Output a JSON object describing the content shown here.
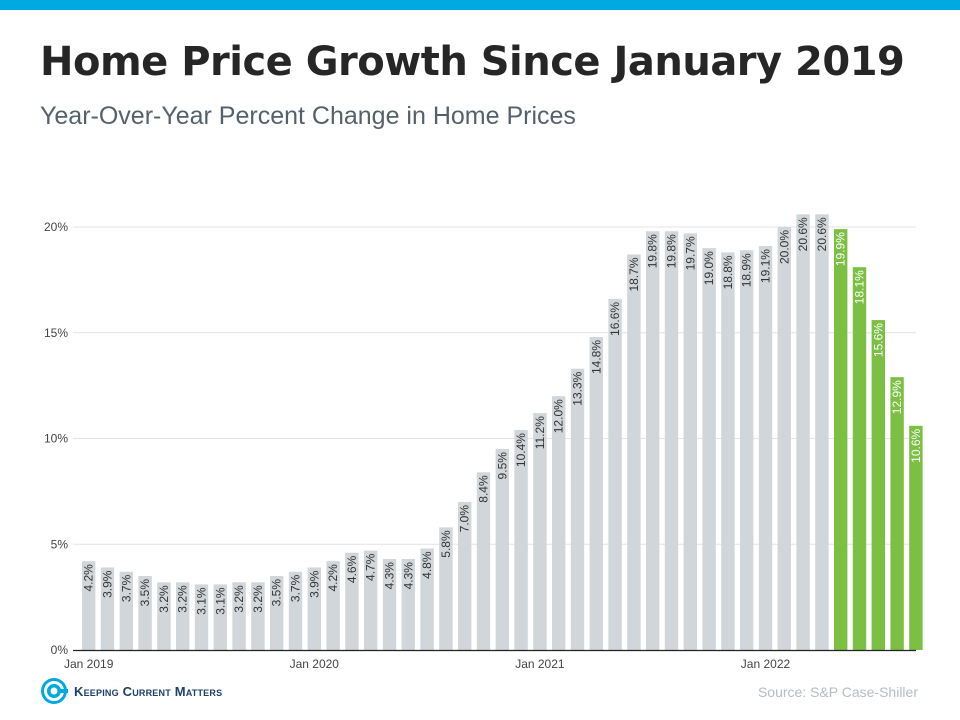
{
  "header": {
    "title": "Home Price Growth Since January 2019",
    "subtitle": "Year-Over-Year Percent Change in Home Prices"
  },
  "footer": {
    "logo_text": "Keeping Current Matters",
    "source": "Source: S&P Case-Shiller"
  },
  "colors": {
    "accent_bar": "#00a9e0",
    "actual_bar": "#d0d6da",
    "highlight_bar": "#7bc043",
    "gridline": "#e4e4e4",
    "axis_text": "#444444",
    "logo": "#1b3f69"
  },
  "chart_data": {
    "type": "bar",
    "title": "Home Price Growth Since January 2019",
    "subtitle": "Year-Over-Year Percent Change in Home Prices",
    "xlabel": "",
    "ylabel": "",
    "ylim": [
      0,
      20
    ],
    "yticks": [
      0,
      5,
      10,
      15,
      20
    ],
    "ytick_labels": [
      "0%",
      "5%",
      "10%",
      "15%",
      "20%"
    ],
    "x_tick_labels": [
      {
        "label": "Jan 2019",
        "index": 0
      },
      {
        "label": "Jan 2020",
        "index": 12
      },
      {
        "label": "Jan 2021",
        "index": 24
      },
      {
        "label": "Jan 2022",
        "index": 36
      }
    ],
    "grid": true,
    "legend": "none",
    "values": [
      4.2,
      3.9,
      3.7,
      3.5,
      3.2,
      3.2,
      3.1,
      3.1,
      3.2,
      3.2,
      3.5,
      3.7,
      3.9,
      4.2,
      4.6,
      4.7,
      4.3,
      4.3,
      4.8,
      5.8,
      7.0,
      8.4,
      9.5,
      10.4,
      11.2,
      12.0,
      13.3,
      14.8,
      16.6,
      18.7,
      19.8,
      19.8,
      19.7,
      19.0,
      18.8,
      18.9,
      19.1,
      20.0,
      20.6,
      20.6,
      19.9,
      18.1,
      15.6,
      12.9,
      10.6
    ],
    "data_labels": [
      "4.2%",
      "3.9%",
      "3.7%",
      "3.5%",
      "3.2%",
      "3.2%",
      "3.1%",
      "3.1%",
      "3.2%",
      "3.2%",
      "3.5%",
      "3.7%",
      "3.9%",
      "4.2%",
      "4.6%",
      "4.7%",
      "4.3%",
      "4.3%",
      "4.8%",
      "5.8%",
      "7.0%",
      "8.4%",
      "9.5%",
      "10.4%",
      "11.2%",
      "12.0%",
      "13.3%",
      "14.8%",
      "16.6%",
      "18.7%",
      "19.8%",
      "19.8%",
      "19.7%",
      "19.0%",
      "18.8%",
      "18.9%",
      "19.1%",
      "20.0%",
      "20.6%",
      "20.6%",
      "19.9%",
      "18.1%",
      "15.6%",
      "12.9%",
      "10.6%"
    ],
    "highlight_from_index": 40
  }
}
